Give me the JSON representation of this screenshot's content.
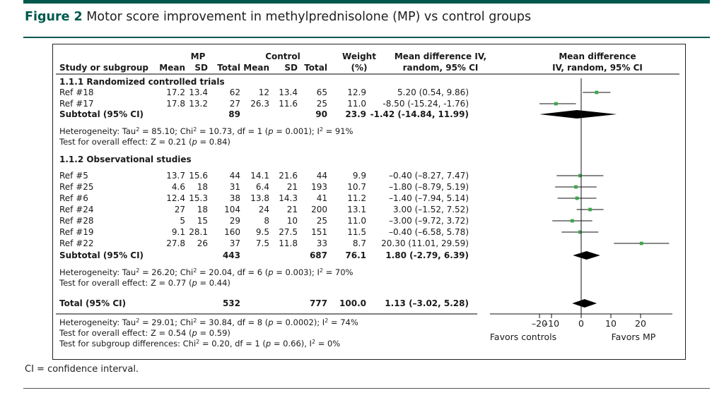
{
  "figure": {
    "label": "Figure 2",
    "title": "Motor score improvement in methylprednisolone (MP) vs control groups",
    "caption": "CI = confidence interval."
  },
  "colors": {
    "accent": "#00594c",
    "point": "#3aa84a",
    "ink": "#000000"
  },
  "chart_data": {
    "type": "forest",
    "headers": {
      "study": "Study or subgroup",
      "mp_group": "MP",
      "control_group": "Control",
      "mean": "Mean",
      "sd": "SD",
      "total": "Total",
      "weight_1": "Weight",
      "weight_2": "(%)",
      "md_1": "Mean difference IV,",
      "md_2": "random, 95% CI",
      "plot_1": "Mean difference",
      "plot_2": "IV, random, 95% CI"
    },
    "groups": [
      {
        "title": "1.1.1 Randomized controlled trials",
        "studies": [
          {
            "name": "Ref #18",
            "mp_mean": "17.2",
            "mp_sd": "13.4",
            "mp_total": "62",
            "c_mean": "12",
            "c_sd": "13.4",
            "c_total": "65",
            "weight": "12.9",
            "ci_text": "5.20 (0.54, 9.86)",
            "md": 5.2,
            "lo": 0.54,
            "hi": 9.86
          },
          {
            "name": "Ref #17",
            "mp_mean": "17.8",
            "mp_sd": "13.2",
            "mp_total": "27",
            "c_mean": "26.3",
            "c_sd": "11.6",
            "c_total": "25",
            "weight": "11.0",
            "ci_text": "-8.50 (-15.24, -1.76)",
            "md": -8.5,
            "lo": -15.24,
            "hi": -1.76
          }
        ],
        "subtotal": {
          "label": "Subtotal (95% CI)",
          "mp_total": "89",
          "c_total": "90",
          "weight": "23.9",
          "ci_text": "-1.42 (-14.84, 11.99)",
          "md": -1.42,
          "lo": -14.84,
          "hi": 11.99
        },
        "heterogeneity": {
          "prefix": "Heterogeneity: Tau",
          "sup1": "2",
          "mid": " = 85.10; Chi",
          "sup2": "2",
          "mid2": " = 10.73, df = 1 (",
          "p": "p",
          "mid3": " = 0.001);  I",
          "sup3": "2",
          "end": " = 91%"
        },
        "overall": {
          "prefix": "Test for overall effect: Z = 0.21 (",
          "p": "p",
          "end": " = 0.84)"
        }
      },
      {
        "title": "1.1.2 Observational studies",
        "studies": [
          {
            "name": "Ref #5",
            "mp_mean": "13.7",
            "mp_sd": "15.6",
            "mp_total": "44",
            "c_mean": "14.1",
            "c_sd": "21.6",
            "c_total": "44",
            "weight": "9.9",
            "ci_text": "–0.40 (–8.27, 7.47)",
            "md": -0.4,
            "lo": -8.27,
            "hi": 7.47
          },
          {
            "name": "Ref #25",
            "mp_mean": "4.6",
            "mp_sd": "18",
            "mp_total": "31",
            "c_mean": "6.4",
            "c_sd": "21",
            "c_total": "193",
            "weight": "10.7",
            "ci_text": "–1.80 (–8.79, 5.19)",
            "md": -1.8,
            "lo": -8.79,
            "hi": 5.19
          },
          {
            "name": "Ref #6",
            "mp_mean": "12.4",
            "mp_sd": "15.3",
            "mp_total": "38",
            "c_mean": "13.8",
            "c_sd": "14.3",
            "c_total": "41",
            "weight": "11.2",
            "ci_text": "–1.40 (–7.94, 5.14)",
            "md": -1.4,
            "lo": -7.94,
            "hi": 5.14
          },
          {
            "name": "Ref #24",
            "mp_mean": "27",
            "mp_sd": "18",
            "mp_total": "104",
            "c_mean": "24",
            "c_sd": "21",
            "c_total": "200",
            "weight": "13.1",
            "ci_text": "3.00 (–1.52, 7.52)",
            "md": 3.0,
            "lo": -1.52,
            "hi": 7.52
          },
          {
            "name": "Ref #28",
            "mp_mean": "5",
            "mp_sd": "15",
            "mp_total": "29",
            "c_mean": "8",
            "c_sd": "10",
            "c_total": "25",
            "weight": "11.0",
            "ci_text": "–3.00 (–9.72, 3.72)",
            "md": -3.0,
            "lo": -9.72,
            "hi": 3.72
          },
          {
            "name": "Ref #19",
            "mp_mean": "9.1",
            "mp_sd": "28.1",
            "mp_total": "160",
            "c_mean": "9.5",
            "c_sd": "27.5",
            "c_total": "151",
            "weight": "11.5",
            "ci_text": "–0.40 (–6.58, 5.78)",
            "md": -0.4,
            "lo": -6.58,
            "hi": 5.78
          },
          {
            "name": "Ref #22",
            "mp_mean": "27.8",
            "mp_sd": "26",
            "mp_total": "37",
            "c_mean": "7.5",
            "c_sd": "11.8",
            "c_total": "33",
            "weight": "8.7",
            "ci_text": "20.30 (11.01, 29.59)",
            "md": 20.3,
            "lo": 11.01,
            "hi": 29.59
          }
        ],
        "subtotal": {
          "label": "Subtotal (95% CI)",
          "mp_total": "443",
          "c_total": "687",
          "weight": "76.1",
          "ci_text": "1.80 (-2.79, 6.39)",
          "md": 1.8,
          "lo": -2.79,
          "hi": 6.39
        },
        "heterogeneity": {
          "prefix": "Heterogeneity: Tau",
          "sup1": "2",
          "mid": " = 26.20; Chi",
          "sup2": "2",
          "mid2": " = 20.04, df = 6 (",
          "p": "p",
          "mid3": " = 0.003);  I",
          "sup3": "2",
          "end": " = 70%"
        },
        "overall": {
          "prefix": "Test for overall effect: Z = 0.77 (",
          "p": "p",
          "end": " = 0.44)"
        }
      }
    ],
    "total": {
      "label": "Total (95% CI)",
      "mp_total": "532",
      "c_total": "777",
      "weight": "100.0",
      "ci_text": "1.13 (–3.02, 5.28)",
      "md": 1.13,
      "lo": -3.02,
      "hi": 5.28
    },
    "total_heterogeneity": {
      "prefix": "Heterogeneity: Tau",
      "sup1": "2",
      "mid": " = 29.01; Chi",
      "sup2": "2",
      "mid2": " = 30.84, df = 8 (",
      "p": "p",
      "mid3": " = 0.0002);  I",
      "sup3": "2",
      "end": " = 74%"
    },
    "total_overall": {
      "prefix": "Test for overall effect: Z = 0.54 (",
      "p": "p",
      "end": " = 0.59)"
    },
    "subgroup_diff": {
      "prefix": "Test for subgroup differences: Chi",
      "sup1": "2",
      "mid": " = 0.20, df = 1 (",
      "p": "p",
      "mid2": " = 0.66),  I",
      "sup2": "2",
      "end": " = 0%"
    },
    "x_axis": {
      "ticks": [
        -20,
        -10,
        0,
        10,
        20
      ],
      "tick_labels": [
        "–20",
        "–10",
        "0",
        "10",
        "20"
      ],
      "range": [
        -30,
        30
      ],
      "left_label": "Favors controls",
      "right_label": "Favors MP"
    }
  }
}
